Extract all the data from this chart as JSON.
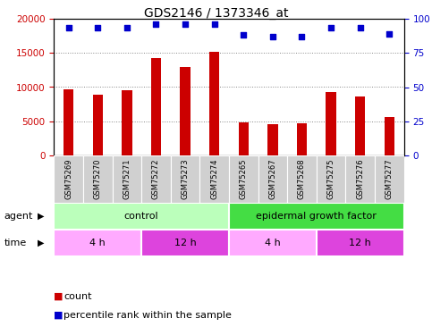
{
  "title": "GDS2146 / 1373346_at",
  "samples": [
    "GSM75269",
    "GSM75270",
    "GSM75271",
    "GSM75272",
    "GSM75273",
    "GSM75274",
    "GSM75265",
    "GSM75267",
    "GSM75268",
    "GSM75275",
    "GSM75276",
    "GSM75277"
  ],
  "counts": [
    9700,
    8900,
    9500,
    14200,
    12900,
    15200,
    4900,
    4650,
    4750,
    9300,
    8600,
    5600
  ],
  "percentiles": [
    93,
    93,
    93,
    96,
    96,
    96,
    88,
    87,
    87,
    93,
    93,
    89
  ],
  "bar_color": "#cc0000",
  "dot_color": "#0000cc",
  "ylim_left": [
    0,
    20000
  ],
  "ylim_right": [
    0,
    100
  ],
  "yticks_left": [
    0,
    5000,
    10000,
    15000,
    20000
  ],
  "yticks_right": [
    0,
    25,
    50,
    75,
    100
  ],
  "agent_color_light": "#bbffbb",
  "agent_color_dark": "#44dd44",
  "time_color_light": "#ffaaff",
  "time_color_dark": "#dd44dd",
  "grid_color": "#888888",
  "title_fontsize": 10,
  "tick_fontsize": 7.5,
  "label_fontsize": 8
}
